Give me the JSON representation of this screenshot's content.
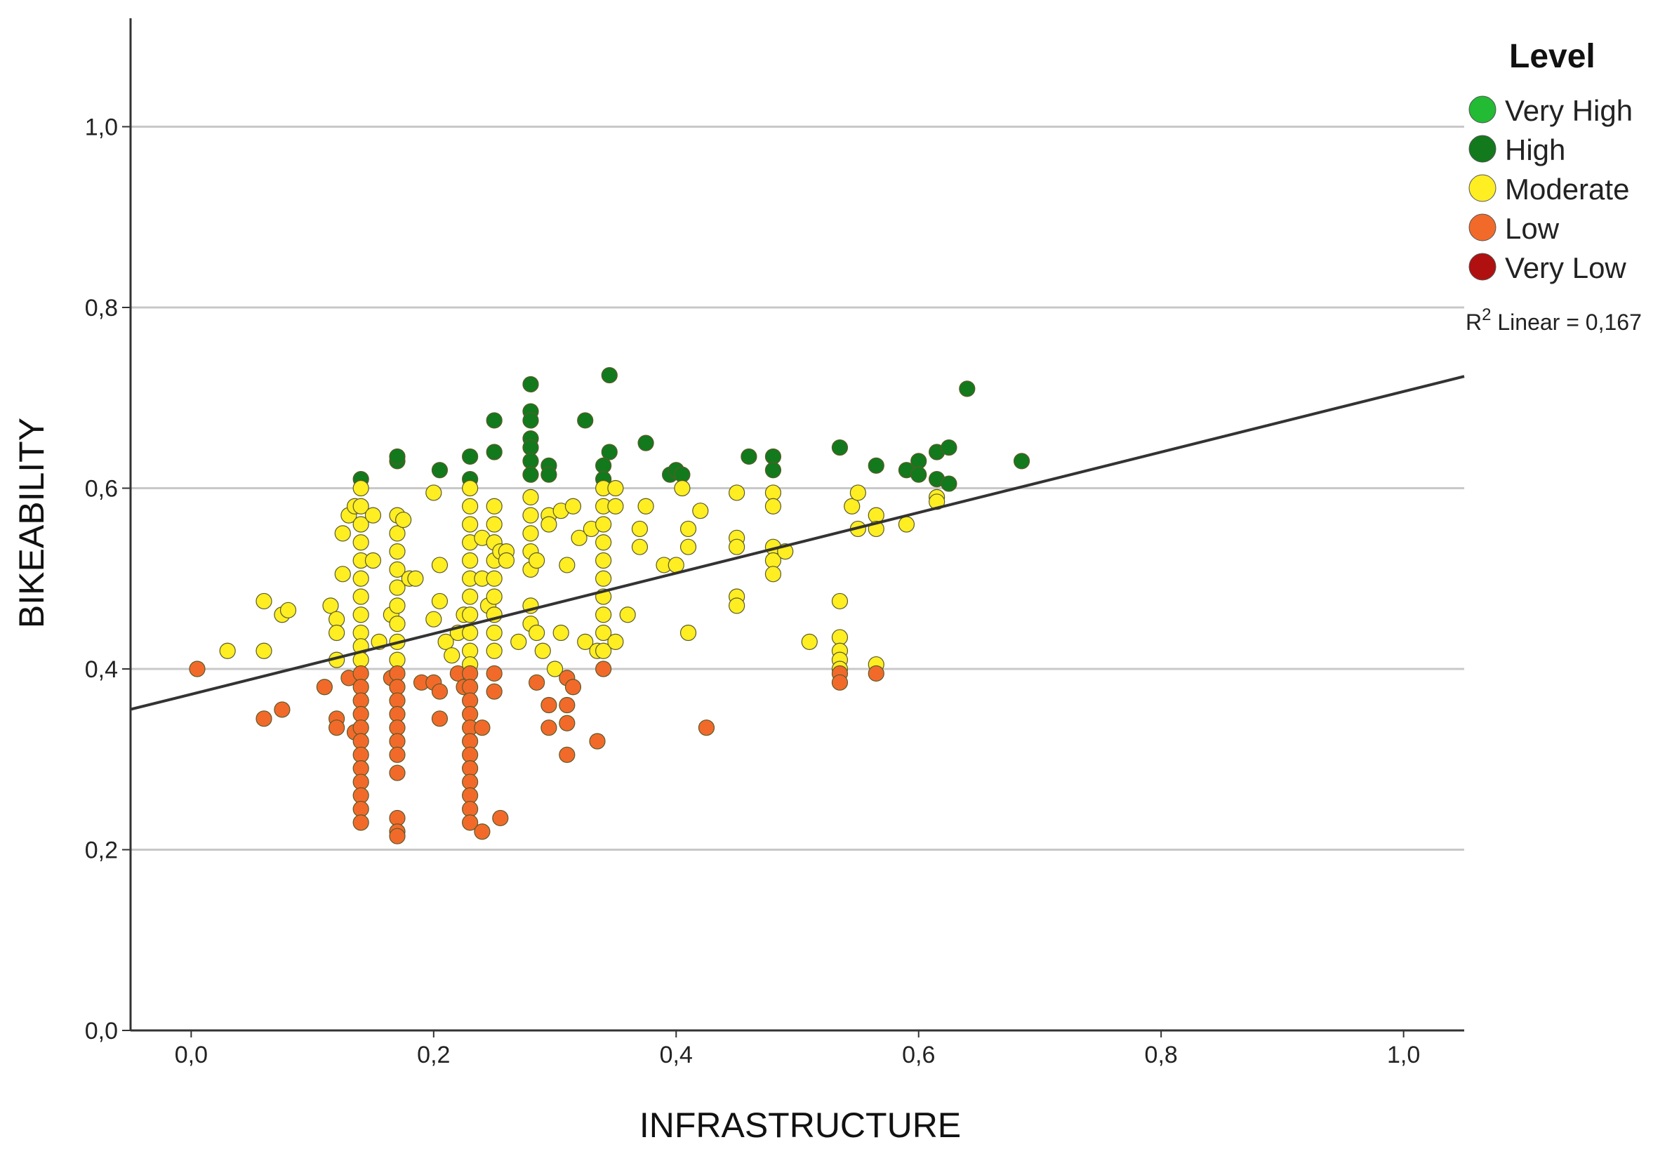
{
  "chart_data": {
    "type": "scatter",
    "xlabel": "INFRASTRUCTURE",
    "ylabel": "BIKEABILITY",
    "xlim": [
      -0.05,
      1.05
    ],
    "ylim": [
      0.0,
      1.12
    ],
    "x_ticks": [
      {
        "value": 0.0,
        "label": "0,0"
      },
      {
        "value": 0.2,
        "label": "0,2"
      },
      {
        "value": 0.4,
        "label": "0,4"
      },
      {
        "value": 0.6,
        "label": "0,6"
      },
      {
        "value": 0.8,
        "label": "0,8"
      },
      {
        "value": 1.0,
        "label": "1,0"
      }
    ],
    "y_ticks": [
      {
        "value": 0.0,
        "label": "0,0"
      },
      {
        "value": 0.2,
        "label": "0,2"
      },
      {
        "value": 0.4,
        "label": "0,4"
      },
      {
        "value": 0.6,
        "label": "0,6"
      },
      {
        "value": 0.8,
        "label": "0,8"
      },
      {
        "value": 1.0,
        "label": "1,0"
      }
    ],
    "grid": "horizontal",
    "legend": {
      "title": "Level",
      "placement": "top-right",
      "fit_label_main": "R",
      "fit_label_sup": "2",
      "fit_label_rest": " Linear = 0,167"
    },
    "fit_line": {
      "intercept": 0.372,
      "slope": 0.335
    },
    "series": [
      {
        "name": "Very High",
        "color": "#22bb33",
        "points": []
      },
      {
        "name": "High",
        "color": "#127a1c",
        "points": [
          [
            0.14,
            0.61
          ],
          [
            0.17,
            0.63
          ],
          [
            0.17,
            0.635
          ],
          [
            0.205,
            0.62
          ],
          [
            0.23,
            0.635
          ],
          [
            0.23,
            0.61
          ],
          [
            0.25,
            0.675
          ],
          [
            0.25,
            0.64
          ],
          [
            0.28,
            0.715
          ],
          [
            0.28,
            0.685
          ],
          [
            0.28,
            0.675
          ],
          [
            0.28,
            0.655
          ],
          [
            0.28,
            0.645
          ],
          [
            0.28,
            0.63
          ],
          [
            0.28,
            0.615
          ],
          [
            0.295,
            0.625
          ],
          [
            0.295,
            0.615
          ],
          [
            0.325,
            0.675
          ],
          [
            0.345,
            0.725
          ],
          [
            0.345,
            0.64
          ],
          [
            0.34,
            0.625
          ],
          [
            0.34,
            0.61
          ],
          [
            0.375,
            0.65
          ],
          [
            0.395,
            0.615
          ],
          [
            0.4,
            0.62
          ],
          [
            0.405,
            0.615
          ],
          [
            0.46,
            0.635
          ],
          [
            0.48,
            0.635
          ],
          [
            0.48,
            0.62
          ],
          [
            0.535,
            0.645
          ],
          [
            0.565,
            0.625
          ],
          [
            0.59,
            0.62
          ],
          [
            0.6,
            0.63
          ],
          [
            0.6,
            0.615
          ],
          [
            0.615,
            0.64
          ],
          [
            0.615,
            0.61
          ],
          [
            0.625,
            0.645
          ],
          [
            0.625,
            0.605
          ],
          [
            0.64,
            0.71
          ],
          [
            0.685,
            0.63
          ]
        ]
      },
      {
        "name": "Moderate",
        "color": "#ffee22",
        "points": [
          [
            0.03,
            0.42
          ],
          [
            0.06,
            0.475
          ],
          [
            0.06,
            0.42
          ],
          [
            0.075,
            0.46
          ],
          [
            0.08,
            0.465
          ],
          [
            0.115,
            0.47
          ],
          [
            0.12,
            0.455
          ],
          [
            0.12,
            0.44
          ],
          [
            0.12,
            0.41
          ],
          [
            0.125,
            0.55
          ],
          [
            0.125,
            0.505
          ],
          [
            0.13,
            0.57
          ],
          [
            0.135,
            0.58
          ],
          [
            0.14,
            0.6
          ],
          [
            0.14,
            0.58
          ],
          [
            0.14,
            0.56
          ],
          [
            0.14,
            0.54
          ],
          [
            0.14,
            0.52
          ],
          [
            0.14,
            0.5
          ],
          [
            0.14,
            0.48
          ],
          [
            0.14,
            0.46
          ],
          [
            0.14,
            0.44
          ],
          [
            0.14,
            0.425
          ],
          [
            0.14,
            0.41
          ],
          [
            0.15,
            0.57
          ],
          [
            0.15,
            0.52
          ],
          [
            0.155,
            0.43
          ],
          [
            0.165,
            0.46
          ],
          [
            0.17,
            0.57
          ],
          [
            0.17,
            0.55
          ],
          [
            0.17,
            0.53
          ],
          [
            0.17,
            0.51
          ],
          [
            0.17,
            0.49
          ],
          [
            0.17,
            0.47
          ],
          [
            0.17,
            0.45
          ],
          [
            0.17,
            0.43
          ],
          [
            0.17,
            0.41
          ],
          [
            0.175,
            0.565
          ],
          [
            0.18,
            0.5
          ],
          [
            0.185,
            0.5
          ],
          [
            0.2,
            0.595
          ],
          [
            0.2,
            0.455
          ],
          [
            0.205,
            0.515
          ],
          [
            0.205,
            0.475
          ],
          [
            0.21,
            0.43
          ],
          [
            0.215,
            0.415
          ],
          [
            0.22,
            0.44
          ],
          [
            0.225,
            0.46
          ],
          [
            0.23,
            0.6
          ],
          [
            0.23,
            0.58
          ],
          [
            0.23,
            0.56
          ],
          [
            0.23,
            0.54
          ],
          [
            0.23,
            0.52
          ],
          [
            0.23,
            0.5
          ],
          [
            0.23,
            0.48
          ],
          [
            0.23,
            0.46
          ],
          [
            0.23,
            0.44
          ],
          [
            0.23,
            0.42
          ],
          [
            0.23,
            0.405
          ],
          [
            0.24,
            0.545
          ],
          [
            0.24,
            0.5
          ],
          [
            0.245,
            0.47
          ],
          [
            0.25,
            0.58
          ],
          [
            0.25,
            0.56
          ],
          [
            0.25,
            0.54
          ],
          [
            0.25,
            0.52
          ],
          [
            0.25,
            0.5
          ],
          [
            0.25,
            0.48
          ],
          [
            0.25,
            0.46
          ],
          [
            0.25,
            0.44
          ],
          [
            0.25,
            0.42
          ],
          [
            0.255,
            0.53
          ],
          [
            0.26,
            0.53
          ],
          [
            0.26,
            0.52
          ],
          [
            0.27,
            0.43
          ],
          [
            0.28,
            0.59
          ],
          [
            0.28,
            0.57
          ],
          [
            0.28,
            0.55
          ],
          [
            0.28,
            0.53
          ],
          [
            0.28,
            0.51
          ],
          [
            0.28,
            0.47
          ],
          [
            0.28,
            0.45
          ],
          [
            0.285,
            0.52
          ],
          [
            0.285,
            0.44
          ],
          [
            0.29,
            0.42
          ],
          [
            0.295,
            0.57
          ],
          [
            0.295,
            0.56
          ],
          [
            0.3,
            0.4
          ],
          [
            0.305,
            0.575
          ],
          [
            0.305,
            0.44
          ],
          [
            0.31,
            0.515
          ],
          [
            0.315,
            0.58
          ],
          [
            0.32,
            0.545
          ],
          [
            0.325,
            0.43
          ],
          [
            0.33,
            0.555
          ],
          [
            0.335,
            0.42
          ],
          [
            0.34,
            0.6
          ],
          [
            0.34,
            0.58
          ],
          [
            0.34,
            0.56
          ],
          [
            0.34,
            0.54
          ],
          [
            0.34,
            0.52
          ],
          [
            0.34,
            0.5
          ],
          [
            0.34,
            0.48
          ],
          [
            0.34,
            0.46
          ],
          [
            0.34,
            0.44
          ],
          [
            0.34,
            0.42
          ],
          [
            0.35,
            0.6
          ],
          [
            0.35,
            0.58
          ],
          [
            0.35,
            0.43
          ],
          [
            0.36,
            0.46
          ],
          [
            0.37,
            0.555
          ],
          [
            0.37,
            0.535
          ],
          [
            0.375,
            0.58
          ],
          [
            0.39,
            0.515
          ],
          [
            0.4,
            0.515
          ],
          [
            0.405,
            0.6
          ],
          [
            0.41,
            0.555
          ],
          [
            0.41,
            0.535
          ],
          [
            0.41,
            0.44
          ],
          [
            0.42,
            0.575
          ],
          [
            0.45,
            0.595
          ],
          [
            0.45,
            0.545
          ],
          [
            0.45,
            0.535
          ],
          [
            0.45,
            0.48
          ],
          [
            0.45,
            0.47
          ],
          [
            0.48,
            0.595
          ],
          [
            0.48,
            0.58
          ],
          [
            0.48,
            0.535
          ],
          [
            0.48,
            0.52
          ],
          [
            0.48,
            0.505
          ],
          [
            0.49,
            0.53
          ],
          [
            0.51,
            0.43
          ],
          [
            0.535,
            0.475
          ],
          [
            0.535,
            0.435
          ],
          [
            0.535,
            0.42
          ],
          [
            0.535,
            0.41
          ],
          [
            0.535,
            0.4
          ],
          [
            0.545,
            0.58
          ],
          [
            0.55,
            0.595
          ],
          [
            0.55,
            0.555
          ],
          [
            0.565,
            0.57
          ],
          [
            0.565,
            0.555
          ],
          [
            0.565,
            0.405
          ],
          [
            0.59,
            0.56
          ],
          [
            0.615,
            0.59
          ],
          [
            0.615,
            0.585
          ]
        ]
      },
      {
        "name": "Low",
        "color": "#f26a2a",
        "points": [
          [
            0.005,
            0.4
          ],
          [
            0.06,
            0.345
          ],
          [
            0.075,
            0.355
          ],
          [
            0.11,
            0.38
          ],
          [
            0.12,
            0.345
          ],
          [
            0.12,
            0.335
          ],
          [
            0.13,
            0.39
          ],
          [
            0.135,
            0.33
          ],
          [
            0.14,
            0.395
          ],
          [
            0.14,
            0.38
          ],
          [
            0.14,
            0.365
          ],
          [
            0.14,
            0.35
          ],
          [
            0.14,
            0.335
          ],
          [
            0.14,
            0.32
          ],
          [
            0.14,
            0.305
          ],
          [
            0.14,
            0.29
          ],
          [
            0.14,
            0.275
          ],
          [
            0.14,
            0.26
          ],
          [
            0.14,
            0.245
          ],
          [
            0.14,
            0.23
          ],
          [
            0.165,
            0.39
          ],
          [
            0.17,
            0.395
          ],
          [
            0.17,
            0.38
          ],
          [
            0.17,
            0.365
          ],
          [
            0.17,
            0.35
          ],
          [
            0.17,
            0.335
          ],
          [
            0.17,
            0.32
          ],
          [
            0.17,
            0.305
          ],
          [
            0.17,
            0.285
          ],
          [
            0.17,
            0.235
          ],
          [
            0.17,
            0.22
          ],
          [
            0.17,
            0.215
          ],
          [
            0.19,
            0.385
          ],
          [
            0.2,
            0.385
          ],
          [
            0.205,
            0.375
          ],
          [
            0.205,
            0.345
          ],
          [
            0.22,
            0.395
          ],
          [
            0.225,
            0.38
          ],
          [
            0.23,
            0.395
          ],
          [
            0.23,
            0.38
          ],
          [
            0.23,
            0.365
          ],
          [
            0.23,
            0.35
          ],
          [
            0.23,
            0.335
          ],
          [
            0.23,
            0.32
          ],
          [
            0.23,
            0.305
          ],
          [
            0.23,
            0.29
          ],
          [
            0.23,
            0.275
          ],
          [
            0.23,
            0.26
          ],
          [
            0.23,
            0.245
          ],
          [
            0.23,
            0.23
          ],
          [
            0.24,
            0.335
          ],
          [
            0.24,
            0.22
          ],
          [
            0.25,
            0.395
          ],
          [
            0.25,
            0.375
          ],
          [
            0.255,
            0.235
          ],
          [
            0.285,
            0.385
          ],
          [
            0.295,
            0.36
          ],
          [
            0.295,
            0.335
          ],
          [
            0.31,
            0.39
          ],
          [
            0.31,
            0.36
          ],
          [
            0.31,
            0.34
          ],
          [
            0.31,
            0.305
          ],
          [
            0.315,
            0.38
          ],
          [
            0.335,
            0.32
          ],
          [
            0.34,
            0.4
          ],
          [
            0.425,
            0.335
          ],
          [
            0.535,
            0.395
          ],
          [
            0.535,
            0.385
          ],
          [
            0.565,
            0.395
          ]
        ]
      },
      {
        "name": "Very Low",
        "color": "#b01010",
        "points": []
      }
    ]
  }
}
